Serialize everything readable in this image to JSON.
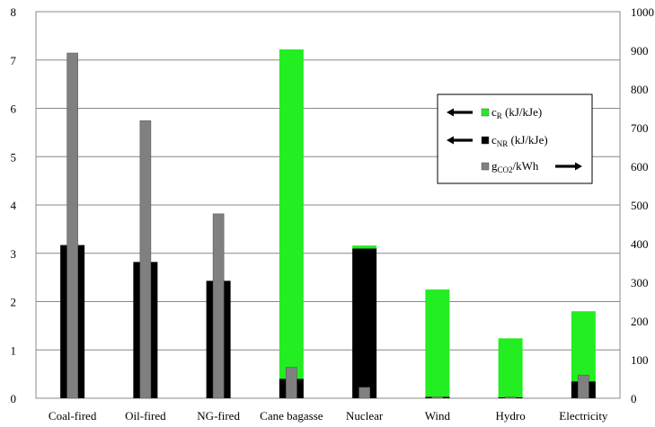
{
  "chart_data": {
    "type": "bar",
    "categories": [
      "Coal-fired",
      "Oil-fired",
      "NG-fired",
      "Cane bagasse",
      "Nuclear",
      "Wind",
      "Hydro",
      "Electricity"
    ],
    "series": [
      {
        "name": "cR (kJ/kJe)",
        "axis": "left",
        "color": "#22ee22",
        "values": [
          0.0,
          0.0,
          0.0,
          6.82,
          0.06,
          2.22,
          1.22,
          1.45
        ]
      },
      {
        "name": "cNR (kJ/kJe)",
        "axis": "left",
        "color": "#000000",
        "values": [
          3.17,
          2.82,
          2.43,
          0.4,
          3.1,
          0.03,
          0.02,
          0.35
        ]
      },
      {
        "name": "gCO2/kWh",
        "axis": "right",
        "color": "#808080",
        "values": [
          893,
          718,
          477,
          80,
          28,
          3,
          3,
          60
        ]
      }
    ],
    "y_left": {
      "min": 0,
      "max": 8,
      "ticks": [
        0,
        1,
        2,
        3,
        4,
        5,
        6,
        7,
        8
      ]
    },
    "y_right": {
      "min": 0,
      "max": 1000,
      "ticks": [
        0,
        100,
        200,
        300,
        400,
        500,
        600,
        700,
        800,
        900,
        1000
      ]
    },
    "grid": true,
    "legend": {
      "placement": "right",
      "entries": [
        {
          "arrow": "left",
          "color": "#22ee22",
          "symbol": "c",
          "sub": "R",
          "unit": " (kJ/kJe)"
        },
        {
          "arrow": "left",
          "color": "#000000",
          "symbol": "c",
          "sub": "NR",
          "unit": " (kJ/kJe)"
        },
        {
          "arrow": "right",
          "color": "#808080",
          "symbol": "g",
          "sub": "CO2",
          "unit": "/kWh"
        }
      ]
    }
  }
}
